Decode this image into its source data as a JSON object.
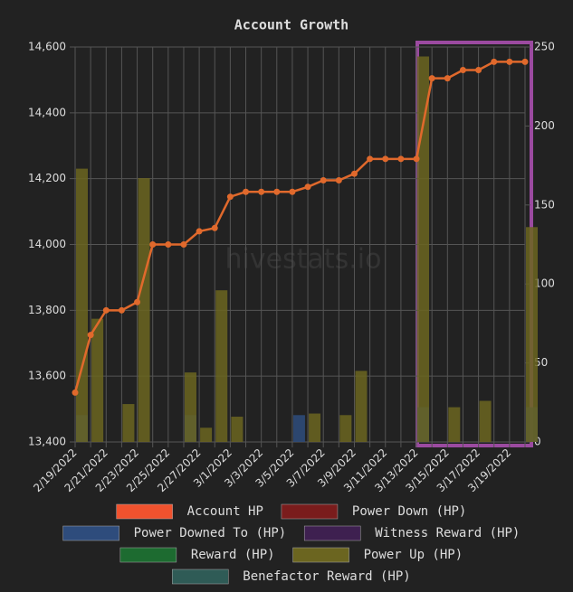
{
  "chart_data": {
    "type": "combo",
    "title": "Account Growth",
    "watermark": "hivestats.io",
    "categories": [
      "2/19/2022",
      null,
      "2/21/2022",
      null,
      "2/23/2022",
      null,
      "2/25/2022",
      null,
      "2/27/2022",
      null,
      "3/1/2022",
      null,
      "3/3/2022",
      null,
      "3/5/2022",
      null,
      "3/7/2022",
      null,
      "3/9/2022",
      null,
      "3/11/2022",
      null,
      "3/13/2022",
      null,
      "3/15/2022",
      null,
      "3/17/2022",
      null,
      "3/19/2022",
      null
    ],
    "series": [
      {
        "name": "Account HP",
        "type": "line",
        "color": "#f0522e",
        "line_color": "#e0692c",
        "values": [
          13550,
          13725,
          13800,
          13800,
          13825,
          14000,
          14000,
          14000,
          14040,
          14050,
          14145,
          14160,
          14160,
          14160,
          14160,
          14175,
          14195,
          14195,
          14215,
          14260,
          14260,
          14260,
          14260,
          14505,
          14505,
          14530,
          14530,
          14555,
          14555,
          14555
        ]
      },
      {
        "name": "Power Down (HP)",
        "type": "bar",
        "axis": "y2",
        "color": "#7a1c1c",
        "values": [
          0,
          0,
          0,
          0,
          0,
          0,
          0,
          0,
          0,
          0,
          0,
          0,
          0,
          0,
          0,
          0,
          0,
          0,
          0,
          0,
          0,
          0,
          0,
          0,
          0,
          0,
          0,
          0,
          0,
          0
        ]
      },
      {
        "name": "Power Downed To (HP)",
        "type": "bar",
        "axis": "y2",
        "color": "#2e4c7c",
        "values": [
          17,
          0,
          0,
          0,
          0,
          0,
          0,
          17,
          0,
          0,
          0,
          0,
          0,
          0,
          17,
          0,
          0,
          0,
          0,
          0,
          0,
          0,
          22,
          0,
          0,
          0,
          0,
          0,
          0,
          22
        ]
      },
      {
        "name": "Witness Reward (HP)",
        "type": "bar",
        "axis": "y2",
        "color": "#3e2050",
        "values": [
          0,
          0,
          0,
          0,
          0,
          0,
          0,
          0,
          0,
          0,
          0,
          0,
          0,
          0,
          0,
          0,
          0,
          0,
          0,
          0,
          0,
          0,
          0,
          0,
          0,
          0,
          0,
          0,
          0,
          0
        ]
      },
      {
        "name": "Reward (HP)",
        "type": "bar",
        "axis": "y2",
        "color": "#1d6b30",
        "values": [
          0,
          0,
          0,
          0,
          0,
          0,
          0,
          0,
          0,
          0,
          0,
          0,
          0,
          0,
          0,
          0,
          0,
          0,
          0,
          0,
          0,
          0,
          0,
          0,
          0,
          0,
          0,
          0,
          0,
          0
        ]
      },
      {
        "name": "Power Up (HP)",
        "type": "bar",
        "axis": "y2",
        "color": "#6b6520",
        "values": [
          173,
          78,
          0,
          24,
          167,
          0,
          0,
          44,
          9,
          96,
          16,
          0,
          0,
          0,
          0,
          18,
          0,
          17,
          45,
          0,
          0,
          0,
          244,
          0,
          22,
          0,
          26,
          0,
          0,
          136
        ]
      },
      {
        "name": "Benefactor Reward (HP)",
        "type": "bar",
        "axis": "y2",
        "color": "#2f5b56",
        "values": [
          0,
          0,
          0,
          0,
          0,
          0,
          0,
          0,
          0,
          0,
          0,
          0,
          0,
          0,
          0,
          0,
          0,
          0,
          0,
          0,
          0,
          0,
          0,
          0,
          0,
          0,
          0,
          0,
          0,
          0
        ]
      }
    ],
    "ylim": [
      13400,
      14600
    ],
    "yticks": [
      {
        "value": 13400,
        "label": "13,400"
      },
      {
        "value": 13600,
        "label": "13,600"
      },
      {
        "value": 13800,
        "label": "13,800"
      },
      {
        "value": 14000,
        "label": "14,000"
      },
      {
        "value": 14200,
        "label": "14,200"
      },
      {
        "value": 14400,
        "label": "14,400"
      },
      {
        "value": 14600,
        "label": "14,600"
      }
    ],
    "y2lim": [
      0,
      250
    ],
    "y2ticks": [
      0,
      50,
      100,
      150,
      200,
      250
    ],
    "grid": true
  }
}
